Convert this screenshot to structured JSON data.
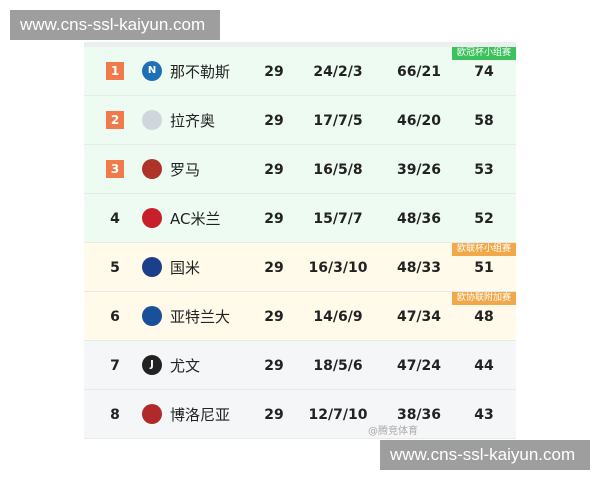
{
  "watermarks": [
    "www.cns-ssl-kaiyun.com",
    "www.cns-ssl-kaiyun.com"
  ],
  "source_mark": "@腾竞体育",
  "colors": {
    "champions": "#3cc25a",
    "europa": "#f0a848",
    "rank_box": "#f07a4a"
  },
  "rows": [
    {
      "rank": "1",
      "team": "那不勒斯",
      "played": "29",
      "wdl": "24/2/3",
      "goals": "66/21",
      "points": "74",
      "badge": "欧冠杯小组赛",
      "logo": "napoli-logo"
    },
    {
      "rank": "2",
      "team": "拉齐奥",
      "played": "29",
      "wdl": "17/7/5",
      "goals": "46/20",
      "points": "58",
      "logo": "lazio-logo"
    },
    {
      "rank": "3",
      "team": "罗马",
      "played": "29",
      "wdl": "16/5/8",
      "goals": "39/26",
      "points": "53",
      "logo": "roma-logo"
    },
    {
      "rank": "4",
      "team": "AC米兰",
      "played": "29",
      "wdl": "15/7/7",
      "goals": "48/36",
      "points": "52",
      "logo": "milan-logo"
    },
    {
      "rank": "5",
      "team": "国米",
      "played": "29",
      "wdl": "16/3/10",
      "goals": "48/33",
      "points": "51",
      "badge": "欧联杯小组赛",
      "logo": "inter-logo"
    },
    {
      "rank": "6",
      "team": "亚特兰大",
      "played": "29",
      "wdl": "14/6/9",
      "goals": "47/34",
      "points": "48",
      "badge": "欧协联附加赛",
      "logo": "atalanta-logo"
    },
    {
      "rank": "7",
      "team": "尤文",
      "played": "29",
      "wdl": "18/5/6",
      "goals": "47/24",
      "points": "44",
      "logo": "juventus-logo"
    },
    {
      "rank": "8",
      "team": "博洛尼亚",
      "played": "29",
      "wdl": "12/7/10",
      "goals": "38/36",
      "points": "43",
      "logo": "bologna-logo"
    }
  ]
}
